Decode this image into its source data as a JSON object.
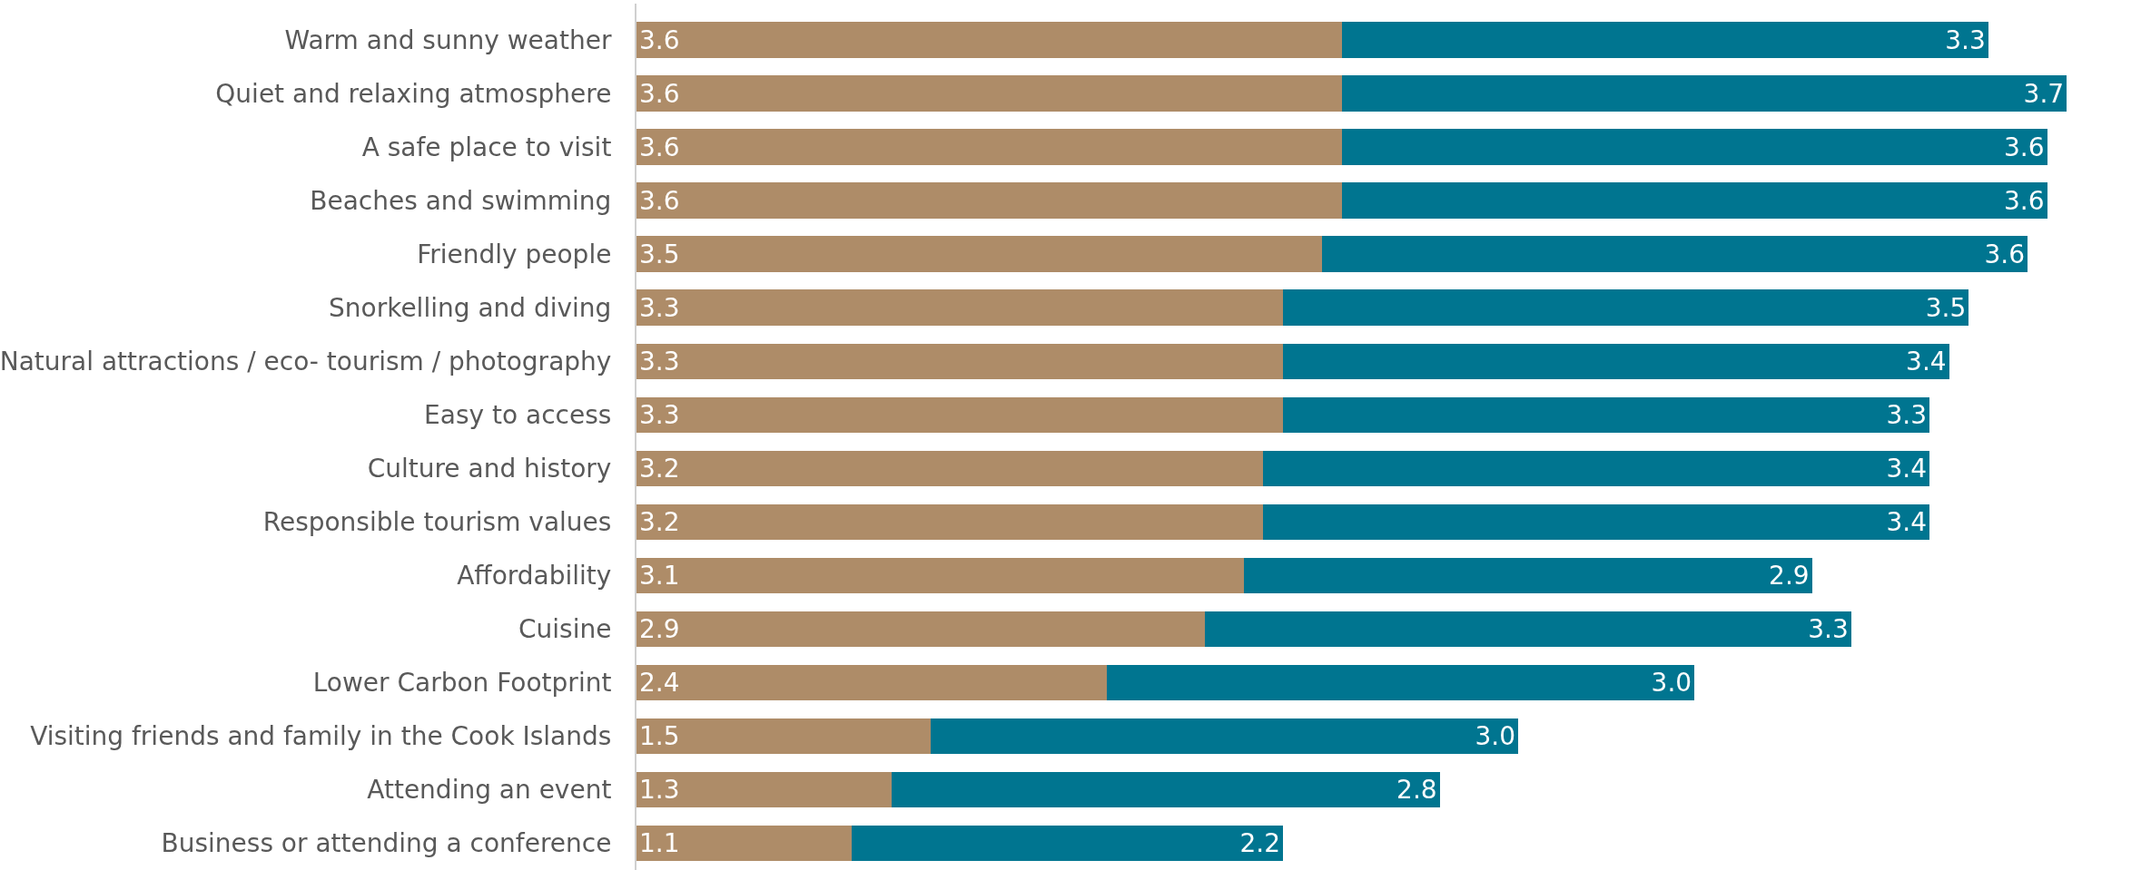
{
  "chart_data": {
    "type": "bar",
    "orientation": "horizontal",
    "stacked": true,
    "categories": [
      "Warm and sunny weather",
      "Quiet and relaxing atmosphere",
      "A safe place to visit",
      "Beaches and swimming",
      "Friendly people",
      "Snorkelling and diving",
      "Natural attractions / eco- tourism / photography",
      "Easy to access",
      "Culture and history",
      "Responsible tourism values",
      "Affordability",
      "Cuisine",
      "Lower Carbon Footprint",
      "Visiting friends and family in the Cook Islands",
      "Attending an event",
      "Business or attending a conference"
    ],
    "series": [
      {
        "color": "#ae8c68",
        "values": [
          3.6,
          3.6,
          3.6,
          3.6,
          3.5,
          3.3,
          3.3,
          3.3,
          3.2,
          3.2,
          3.1,
          2.9,
          2.4,
          1.5,
          1.3,
          1.1
        ],
        "value_labels": [
          "3.6",
          "3.6",
          "3.6",
          "3.6",
          "3.5",
          "3.3",
          "3.3",
          "3.3",
          "3.2",
          "3.2",
          "3.1",
          "2.9",
          "2.4",
          "1.5",
          "1.3",
          "1.1"
        ]
      },
      {
        "color": "#007590",
        "values": [
          3.3,
          3.7,
          3.6,
          3.6,
          3.6,
          3.5,
          3.4,
          3.3,
          3.4,
          3.4,
          2.9,
          3.3,
          3.0,
          3.0,
          2.8,
          2.2
        ],
        "value_labels": [
          "3.3",
          "3.7",
          "3.6",
          "3.6",
          "3.6",
          "3.5",
          "3.4",
          "3.3",
          "3.4",
          "3.4",
          "2.9",
          "3.3",
          "3.0",
          "3.0",
          "2.8",
          "2.2"
        ]
      }
    ]
  }
}
